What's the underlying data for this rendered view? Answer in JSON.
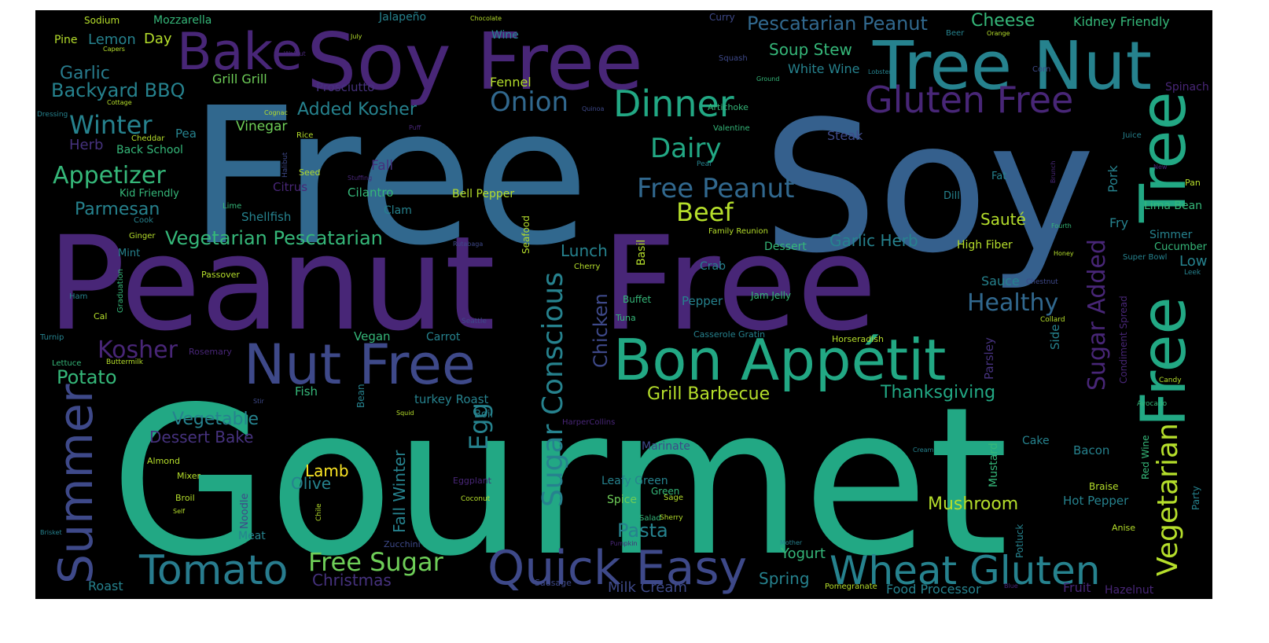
{
  "palette": {
    "deep_purple": "#46327e",
    "purple": "#482677",
    "indigo": "#3e4989",
    "blue": "#31688e",
    "steel_blue": "#35608d",
    "teal": "#26828e",
    "teal_dark": "#287c8e",
    "aqua": "#1f9e89",
    "green_teal": "#22a884",
    "green": "#35b779",
    "bright_green": "#6ece58",
    "lime": "#b5de2b",
    "yellow": "#fde725",
    "background": "#000000",
    "page": "#ffffff"
  },
  "words": [
    {
      "text": "Gourmet",
      "color": "green_teal"
    },
    {
      "text": "Free",
      "color": "blue"
    },
    {
      "text": "Soy",
      "color": "steel_blue"
    },
    {
      "text": "Peanut",
      "color": "purple"
    },
    {
      "text": "Free",
      "color": "purple"
    },
    {
      "text": "Soy Free",
      "color": "purple"
    },
    {
      "text": "Tree Nut",
      "color": "teal"
    },
    {
      "text": "Bake",
      "color": "purple"
    },
    {
      "text": "Nut Free",
      "color": "indigo"
    },
    {
      "text": "Bon Appétit",
      "color": "green_teal"
    },
    {
      "text": "Quick Easy",
      "color": "indigo"
    },
    {
      "text": "Wheat Gluten",
      "color": "teal"
    },
    {
      "text": "Tomato",
      "color": "teal_dark"
    },
    {
      "text": "Summer",
      "color": "indigo"
    },
    {
      "text": "Free",
      "color": "green_teal"
    },
    {
      "text": "Tree",
      "color": "green_teal"
    },
    {
      "text": "Vegetarian",
      "color": "lime"
    },
    {
      "text": "Gluten Free",
      "color": "purple"
    },
    {
      "text": "Dinner",
      "color": "green_teal"
    },
    {
      "text": "Sugar Conscious",
      "color": "teal"
    },
    {
      "text": "Sugar Added",
      "color": "purple"
    },
    {
      "text": "Onion",
      "color": "blue"
    },
    {
      "text": "Dairy",
      "color": "green_teal"
    },
    {
      "text": "Free Peanut",
      "color": "blue"
    },
    {
      "text": "Beef",
      "color": "lime"
    },
    {
      "text": "Free Sugar",
      "color": "bright_green"
    },
    {
      "text": "Healthy",
      "color": "blue"
    },
    {
      "text": "Pescatarian Peanut",
      "color": "blue"
    },
    {
      "text": "Cheese",
      "color": "green"
    },
    {
      "text": "Kidney Friendly",
      "color": "green"
    },
    {
      "text": "Soup Stew",
      "color": "green"
    },
    {
      "text": "White Wine",
      "color": "teal"
    },
    {
      "text": "Winter",
      "color": "teal"
    },
    {
      "text": "Appetizer",
      "color": "green"
    },
    {
      "text": "Kosher",
      "color": "purple"
    },
    {
      "text": "Vegetarian Pescatarian",
      "color": "green"
    },
    {
      "text": "Backyard BBQ",
      "color": "teal"
    },
    {
      "text": "Garlic",
      "color": "teal_dark"
    },
    {
      "text": "Added Kosher",
      "color": "teal"
    },
    {
      "text": "Parmesan",
      "color": "teal"
    },
    {
      "text": "Potato",
      "color": "green"
    },
    {
      "text": "Vegetable",
      "color": "teal"
    },
    {
      "text": "Dessert Bake",
      "color": "deep_purple"
    },
    {
      "text": "Egg",
      "color": "teal"
    },
    {
      "text": "Chicken",
      "color": "indigo"
    },
    {
      "text": "Lunch",
      "color": "teal"
    },
    {
      "text": "Garlic Herb",
      "color": "teal"
    },
    {
      "text": "Grill Barbecue",
      "color": "lime"
    },
    {
      "text": "Thanksgiving",
      "color": "green_teal"
    },
    {
      "text": "Mushroom",
      "color": "lime"
    },
    {
      "text": "Pasta",
      "color": "teal"
    },
    {
      "text": "Lamb",
      "color": "yellow"
    },
    {
      "text": "Olive",
      "color": "teal"
    },
    {
      "text": "Fall Winter",
      "color": "teal"
    },
    {
      "text": "Christmas",
      "color": "deep_purple"
    },
    {
      "text": "Milk Cream",
      "color": "indigo"
    },
    {
      "text": "Yogurt",
      "color": "green"
    },
    {
      "text": "Spring",
      "color": "teal"
    },
    {
      "text": "Food Processor",
      "color": "teal"
    },
    {
      "text": "Fruit",
      "color": "purple"
    },
    {
      "text": "Hazelnut",
      "color": "purple"
    },
    {
      "text": "Roast",
      "color": "teal"
    },
    {
      "text": "Sauté",
      "color": "lime"
    },
    {
      "text": "Sauce",
      "color": "teal"
    },
    {
      "text": "Herb",
      "color": "deep_purple"
    },
    {
      "text": "Lemon",
      "color": "teal"
    },
    {
      "text": "Day",
      "color": "lime"
    },
    {
      "text": "Pine",
      "color": "lime"
    },
    {
      "text": "Sodium",
      "color": "lime"
    },
    {
      "text": "Mozzarella",
      "color": "green"
    },
    {
      "text": "Grill Grill",
      "color": "bright_green"
    },
    {
      "text": "Prosciutto",
      "color": "deep_purple"
    },
    {
      "text": "Fennel",
      "color": "lime"
    },
    {
      "text": "Vinegar",
      "color": "bright_green"
    },
    {
      "text": "Fall",
      "color": "deep_purple"
    },
    {
      "text": "Citrus",
      "color": "purple"
    },
    {
      "text": "Cilantro",
      "color": "green"
    },
    {
      "text": "Clam",
      "color": "teal"
    },
    {
      "text": "Bell Pepper",
      "color": "lime"
    },
    {
      "text": "Shellfish",
      "color": "teal"
    },
    {
      "text": "Pea",
      "color": "teal"
    },
    {
      "text": "Back School",
      "color": "green"
    },
    {
      "text": "Kid Friendly",
      "color": "green"
    },
    {
      "text": "Mint",
      "color": "teal"
    },
    {
      "text": "Steak",
      "color": "indigo"
    },
    {
      "text": "Jalapeño",
      "color": "teal"
    },
    {
      "text": "Wine",
      "color": "teal"
    },
    {
      "text": "Curry",
      "color": "indigo"
    },
    {
      "text": "Spinach",
      "color": "purple"
    },
    {
      "text": "Pork",
      "color": "teal"
    },
    {
      "text": "Lima Bean",
      "color": "green"
    },
    {
      "text": "Simmer",
      "color": "teal"
    },
    {
      "text": "Cucumber",
      "color": "green"
    },
    {
      "text": "Low",
      "color": "teal"
    },
    {
      "text": "Fry",
      "color": "teal"
    },
    {
      "text": "High Fiber",
      "color": "lime"
    },
    {
      "text": "Dessert",
      "color": "green"
    },
    {
      "text": "Crab",
      "color": "teal"
    },
    {
      "text": "Pepper",
      "color": "teal"
    },
    {
      "text": "Basil",
      "color": "lime"
    },
    {
      "text": "Seafood",
      "color": "lime"
    },
    {
      "text": "Side",
      "color": "teal"
    },
    {
      "text": "Parsley",
      "color": "deep_purple"
    },
    {
      "text": "Condiment Spread",
      "color": "purple"
    },
    {
      "text": "Vegan",
      "color": "green"
    },
    {
      "text": "Carrot",
      "color": "teal"
    },
    {
      "text": "Fish",
      "color": "green"
    },
    {
      "text": "turkey Roast",
      "color": "teal"
    },
    {
      "text": "Boil",
      "color": "teal"
    },
    {
      "text": "Bean",
      "color": "teal"
    },
    {
      "text": "Marinate",
      "color": "indigo"
    },
    {
      "text": "Leafy Green",
      "color": "teal"
    },
    {
      "text": "Green",
      "color": "green"
    },
    {
      "text": "Spice",
      "color": "bright_green"
    },
    {
      "text": "Bacon",
      "color": "teal"
    },
    {
      "text": "Hot Pepper",
      "color": "teal"
    },
    {
      "text": "Braise",
      "color": "lime"
    },
    {
      "text": "Mustard",
      "color": "green"
    },
    {
      "text": "Cake",
      "color": "teal"
    },
    {
      "text": "Potluck",
      "color": "teal"
    },
    {
      "text": "Red Wine",
      "color": "green"
    },
    {
      "text": "Party",
      "color": "teal"
    },
    {
      "text": "Meat",
      "color": "teal"
    },
    {
      "text": "Noodle",
      "color": "indigo"
    },
    {
      "text": "Zucchini",
      "color": "indigo"
    },
    {
      "text": "Buffet",
      "color": "green"
    },
    {
      "text": "Tuna",
      "color": "green"
    },
    {
      "text": "Jam Jelly",
      "color": "green"
    },
    {
      "text": "Casserole Gratin",
      "color": "teal"
    },
    {
      "text": "Horseradish",
      "color": "lime"
    },
    {
      "text": "HarperCollins",
      "color": "purple"
    },
    {
      "text": "Rosemary",
      "color": "purple"
    },
    {
      "text": "Lettuce",
      "color": "green"
    },
    {
      "text": "Turnip",
      "color": "teal"
    },
    {
      "text": "Cal",
      "color": "lime"
    },
    {
      "text": "Ham",
      "color": "teal"
    },
    {
      "text": "Passover",
      "color": "lime"
    },
    {
      "text": "Ginger",
      "color": "lime"
    },
    {
      "text": "Cook",
      "color": "teal"
    },
    {
      "text": "Lime",
      "color": "green"
    },
    {
      "text": "Seed",
      "color": "lime"
    },
    {
      "text": "Rice",
      "color": "lime"
    },
    {
      "text": "Cheddar",
      "color": "lime"
    },
    {
      "text": "Dressing",
      "color": "teal"
    },
    {
      "text": "Cottage",
      "color": "lime"
    },
    {
      "text": "Capers",
      "color": "lime"
    },
    {
      "text": "Almond",
      "color": "lime"
    },
    {
      "text": "Mixer",
      "color": "lime"
    },
    {
      "text": "Broil",
      "color": "lime"
    },
    {
      "text": "Self",
      "color": "lime"
    },
    {
      "text": "Brisket",
      "color": "teal"
    },
    {
      "text": "Sausage",
      "color": "indigo"
    },
    {
      "text": "Salad",
      "color": "green"
    },
    {
      "text": "Sherry",
      "color": "lime"
    },
    {
      "text": "Sage",
      "color": "lime"
    },
    {
      "text": "Pumpkin",
      "color": "purple"
    },
    {
      "text": "Mother",
      "color": "teal"
    },
    {
      "text": "Pomegranate",
      "color": "lime"
    },
    {
      "text": "Blue",
      "color": "purple"
    },
    {
      "text": "Cream",
      "color": "teal"
    },
    {
      "text": "Anise",
      "color": "lime"
    },
    {
      "text": "Eggplant",
      "color": "purple"
    },
    {
      "text": "Coconut",
      "color": "lime"
    },
    {
      "text": "Chile",
      "color": "lime"
    },
    {
      "text": "Squid",
      "color": "lime"
    },
    {
      "text": "Stir",
      "color": "indigo"
    },
    {
      "text": "Buttermilk",
      "color": "lime"
    },
    {
      "text": "Seattle",
      "color": "indigo"
    },
    {
      "text": "Chestnut",
      "color": "indigo"
    },
    {
      "text": "Collard",
      "color": "lime"
    },
    {
      "text": "Candy",
      "color": "lime"
    },
    {
      "text": "Avocado",
      "color": "green"
    },
    {
      "text": "Leek",
      "color": "teal"
    },
    {
      "text": "Super Bowl",
      "color": "teal"
    },
    {
      "text": "Honey",
      "color": "lime"
    },
    {
      "text": "Fourth",
      "color": "green"
    },
    {
      "text": "Family Reunion",
      "color": "lime"
    },
    {
      "text": "Cherry",
      "color": "lime"
    },
    {
      "text": "Rutabaga",
      "color": "indigo"
    },
    {
      "text": "Pear",
      "color": "teal"
    },
    {
      "text": "Valentine",
      "color": "green"
    },
    {
      "text": "Quinoa",
      "color": "indigo"
    },
    {
      "text": "Artichoke",
      "color": "green"
    },
    {
      "text": "Ground",
      "color": "green"
    },
    {
      "text": "Squash",
      "color": "indigo"
    },
    {
      "text": "Lobster",
      "color": "teal"
    },
    {
      "text": "Corn",
      "color": "indigo"
    },
    {
      "text": "Beer",
      "color": "teal"
    },
    {
      "text": "Orange",
      "color": "lime"
    },
    {
      "text": "July",
      "color": "lime"
    },
    {
      "text": "Chocolate",
      "color": "lime"
    },
    {
      "text": "Walnut",
      "color": "purple"
    },
    {
      "text": "Halibut",
      "color": "indigo"
    },
    {
      "text": "Puff",
      "color": "purple"
    },
    {
      "text": "Stuffing",
      "color": "purple"
    },
    {
      "text": "Cognac",
      "color": "lime"
    },
    {
      "text": "Graduation",
      "color": "green"
    },
    {
      "text": "Dill",
      "color": "teal"
    },
    {
      "text": "Fat",
      "color": "teal"
    },
    {
      "text": "Brunch",
      "color": "purple"
    },
    {
      "text": "Pan",
      "color": "lime"
    },
    {
      "text": "Juice",
      "color": "teal"
    },
    {
      "text": "New",
      "color": "purple"
    }
  ]
}
